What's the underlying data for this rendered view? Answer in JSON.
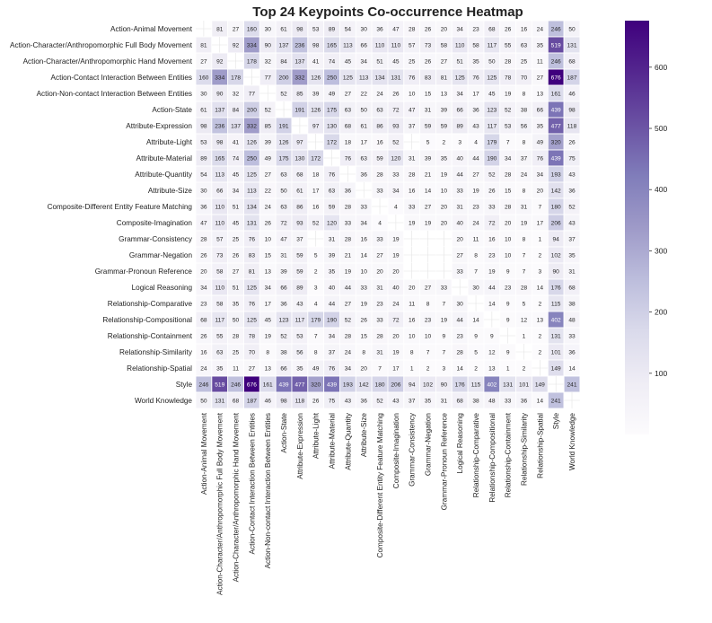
{
  "chart_data": {
    "type": "heatmap",
    "title": "Top 24 Keypoints Co-occurrence Heatmap",
    "xlabel": "",
    "ylabel": "",
    "categories": [
      "Action-Animal Movement",
      "Action-Character/Anthropomorphic Full Body Movement",
      "Action-Character/Anthropomorphic Hand Movement",
      "Action-Contact Interaction Between Entities",
      "Action-Non-contact Interaction Between Entities",
      "Action-State",
      "Attribute-Expression",
      "Attribute-Light",
      "Attribute-Material",
      "Attribute-Quantity",
      "Attribute-Size",
      "Composite-Different Entity Feature Matching",
      "Composite-Imagination",
      "Grammar-Consistency",
      "Grammar-Negation",
      "Grammar-Pronoun Reference",
      "Logical Reasoning",
      "Relationship-Comparative",
      "Relationship-Compositional",
      "Relationship-Containment",
      "Relationship-Similarity",
      "Relationship-Spatial",
      "Style",
      "World Knowledge"
    ],
    "values": [
      [
        null,
        81,
        27,
        160,
        30,
        61,
        98,
        53,
        89,
        54,
        30,
        36,
        47,
        28,
        26,
        20,
        34,
        23,
        68,
        26,
        16,
        24,
        246,
        50
      ],
      [
        81,
        null,
        92,
        334,
        90,
        137,
        236,
        98,
        165,
        113,
        66,
        110,
        110,
        57,
        73,
        58,
        110,
        58,
        117,
        55,
        63,
        35,
        519,
        131
      ],
      [
        27,
        92,
        null,
        178,
        32,
        84,
        137,
        41,
        74,
        45,
        34,
        51,
        45,
        25,
        26,
        27,
        51,
        35,
        50,
        28,
        25,
        11,
        246,
        68
      ],
      [
        160,
        334,
        178,
        null,
        77,
        200,
        332,
        126,
        250,
        125,
        113,
        134,
        131,
        76,
        83,
        81,
        125,
        76,
        125,
        78,
        70,
        27,
        676,
        187
      ],
      [
        30,
        90,
        32,
        77,
        null,
        52,
        85,
        39,
        49,
        27,
        22,
        24,
        26,
        10,
        15,
        13,
        34,
        17,
        45,
        19,
        8,
        13,
        161,
        46
      ],
      [
        61,
        137,
        84,
        200,
        52,
        null,
        191,
        126,
        175,
        63,
        50,
        63,
        72,
        47,
        31,
        39,
        66,
        36,
        123,
        52,
        38,
        66,
        439,
        98
      ],
      [
        98,
        236,
        137,
        332,
        85,
        191,
        null,
        97,
        130,
        68,
        61,
        86,
        93,
        37,
        59,
        59,
        89,
        43,
        117,
        53,
        56,
        35,
        477,
        118
      ],
      [
        53,
        98,
        41,
        126,
        39,
        126,
        97,
        null,
        172,
        18,
        17,
        16,
        52,
        null,
        5,
        2,
        3,
        4,
        179,
        7,
        8,
        49,
        320,
        26
      ],
      [
        89,
        165,
        74,
        250,
        49,
        175,
        130,
        172,
        null,
        76,
        63,
        59,
        120,
        31,
        39,
        35,
        40,
        44,
        190,
        34,
        37,
        76,
        439,
        75
      ],
      [
        54,
        113,
        45,
        125,
        27,
        63,
        68,
        18,
        76,
        null,
        36,
        28,
        33,
        28,
        21,
        19,
        44,
        27,
        52,
        28,
        24,
        34,
        193,
        43
      ],
      [
        30,
        66,
        34,
        113,
        22,
        50,
        61,
        17,
        63,
        36,
        null,
        33,
        34,
        16,
        14,
        10,
        33,
        19,
        26,
        15,
        8,
        20,
        142,
        36
      ],
      [
        36,
        110,
        51,
        134,
        24,
        63,
        86,
        16,
        59,
        28,
        33,
        null,
        4,
        33,
        27,
        20,
        31,
        23,
        33,
        28,
        31,
        7,
        180,
        52
      ],
      [
        47,
        110,
        45,
        131,
        26,
        72,
        93,
        52,
        120,
        33,
        34,
        4,
        null,
        19,
        19,
        20,
        40,
        24,
        72,
        20,
        19,
        17,
        206,
        43
      ],
      [
        28,
        57,
        25,
        76,
        10,
        47,
        37,
        null,
        31,
        28,
        16,
        33,
        19,
        null,
        null,
        null,
        20,
        11,
        16,
        10,
        8,
        1,
        94,
        37
      ],
      [
        26,
        73,
        26,
        83,
        15,
        31,
        59,
        5,
        39,
        21,
        14,
        27,
        19,
        null,
        null,
        null,
        27,
        8,
        23,
        10,
        7,
        2,
        102,
        35
      ],
      [
        20,
        58,
        27,
        81,
        13,
        39,
        59,
        2,
        35,
        19,
        10,
        20,
        20,
        null,
        null,
        null,
        33,
        7,
        19,
        9,
        7,
        3,
        90,
        31
      ],
      [
        34,
        110,
        51,
        125,
        34,
        66,
        89,
        3,
        40,
        44,
        33,
        31,
        40,
        20,
        27,
        33,
        null,
        30,
        44,
        23,
        28,
        14,
        176,
        68
      ],
      [
        23,
        58,
        35,
        76,
        17,
        36,
        43,
        4,
        44,
        27,
        19,
        23,
        24,
        11,
        8,
        7,
        30,
        null,
        14,
        9,
        5,
        2,
        115,
        38
      ],
      [
        68,
        117,
        50,
        125,
        45,
        123,
        117,
        179,
        190,
        52,
        26,
        33,
        72,
        16,
        23,
        19,
        44,
        14,
        null,
        9,
        12,
        13,
        402,
        48
      ],
      [
        26,
        55,
        28,
        78,
        19,
        52,
        53,
        7,
        34,
        28,
        15,
        28,
        20,
        10,
        10,
        9,
        23,
        9,
        9,
        null,
        1,
        2,
        131,
        33
      ],
      [
        16,
        63,
        25,
        70,
        8,
        38,
        56,
        8,
        37,
        24,
        8,
        31,
        19,
        8,
        7,
        7,
        28,
        5,
        12,
        9,
        null,
        2,
        101,
        36
      ],
      [
        24,
        35,
        11,
        27,
        13,
        66,
        35,
        49,
        76,
        34,
        20,
        7,
        17,
        1,
        2,
        3,
        14,
        2,
        13,
        1,
        2,
        null,
        149,
        14
      ],
      [
        246,
        519,
        246,
        676,
        161,
        439,
        477,
        320,
        439,
        193,
        142,
        180,
        206,
        94,
        102,
        90,
        176,
        115,
        402,
        131,
        101,
        149,
        null,
        241
      ],
      [
        50,
        131,
        68,
        187,
        46,
        98,
        118,
        26,
        75,
        43,
        36,
        52,
        43,
        37,
        35,
        31,
        68,
        38,
        48,
        33,
        36,
        14,
        241,
        null
      ]
    ],
    "colorbar": {
      "range": [
        0,
        676
      ],
      "ticks": [
        100,
        200,
        300,
        400,
        500,
        600
      ]
    },
    "colors": {
      "low": "#fcfbfd",
      "high": "#3f007d"
    },
    "grid": true
  }
}
